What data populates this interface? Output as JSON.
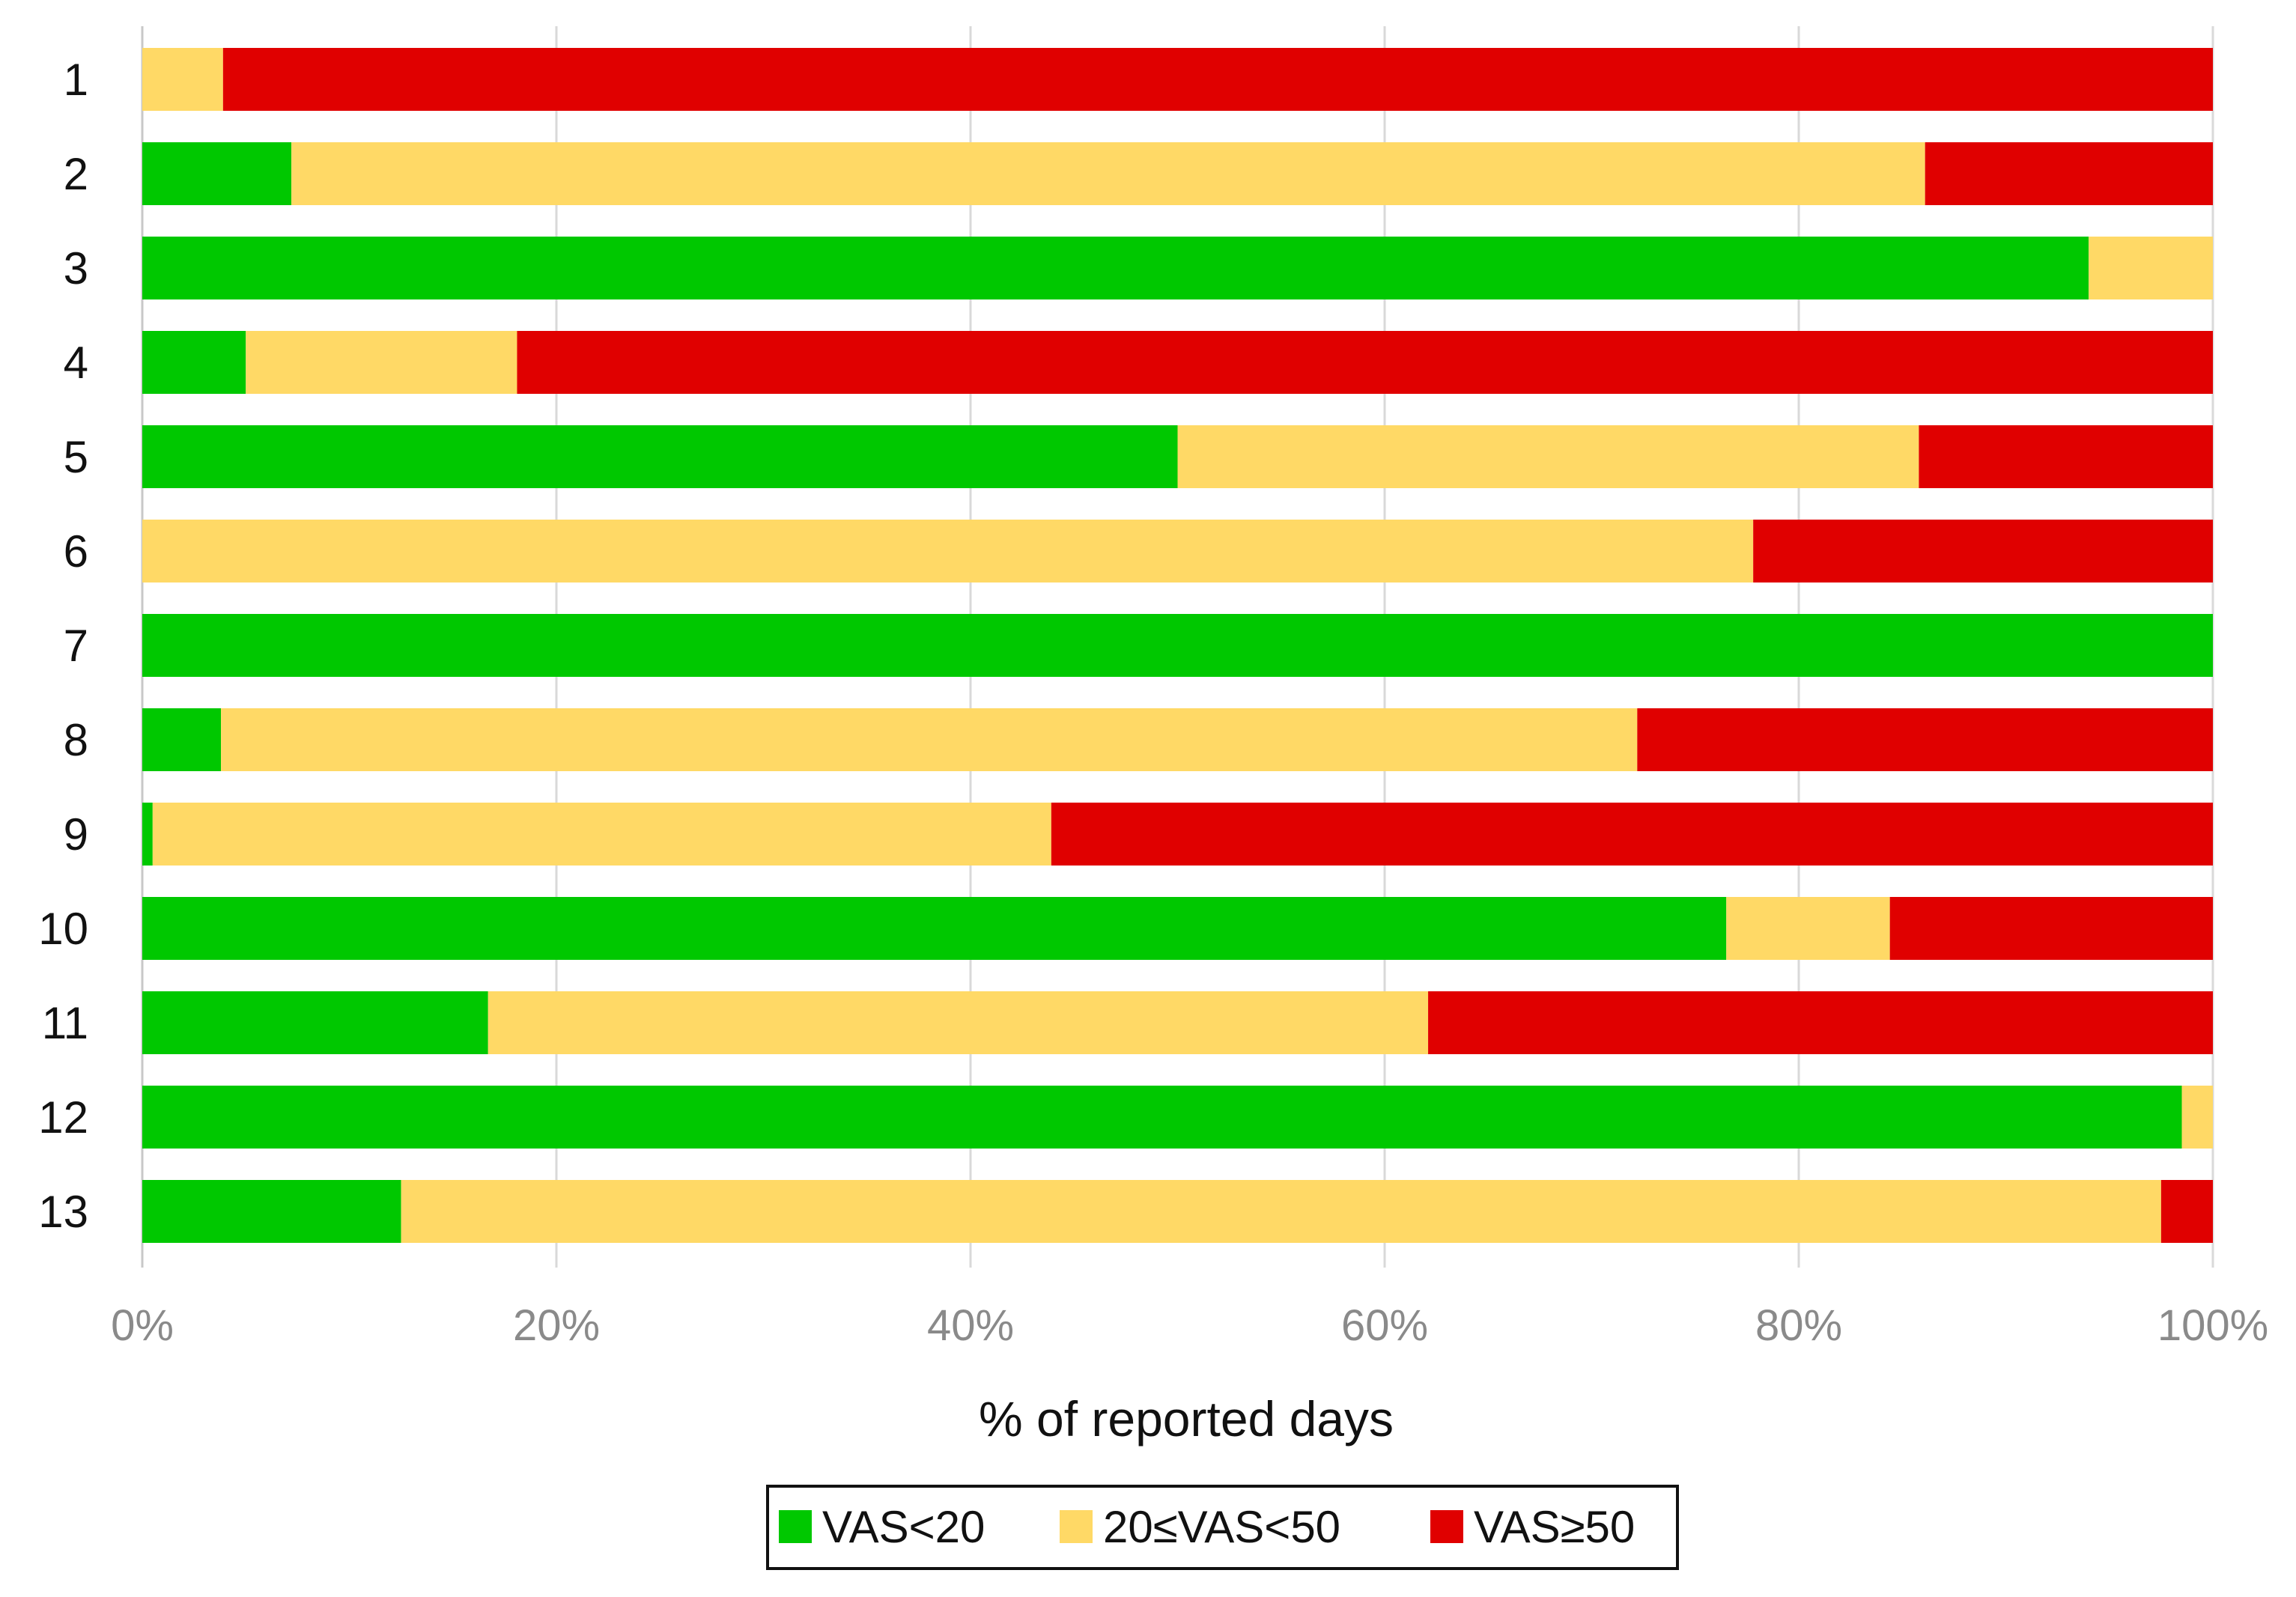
{
  "chart_data": {
    "type": "bar",
    "orientation": "horizontal",
    "stacked": true,
    "categories": [
      "1",
      "2",
      "3",
      "4",
      "5",
      "6",
      "7",
      "8",
      "9",
      "10",
      "11",
      "12",
      "13"
    ],
    "series": [
      {
        "name": "VAS<20",
        "color": "#00C800",
        "values": [
          0,
          7.2,
          94,
          5,
          50,
          0,
          100,
          3.8,
          0.5,
          76.5,
          16.7,
          98.5,
          12.5
        ]
      },
      {
        "name": "20≤VAS<50",
        "color": "#FFD966",
        "values": [
          3.9,
          78.9,
          6,
          13.1,
          35.8,
          77.8,
          0,
          68.4,
          43.4,
          7.9,
          45.4,
          1.5,
          85
        ]
      },
      {
        "name": "VAS≥50",
        "color": "#E00000",
        "values": [
          96.1,
          13.9,
          0,
          81.9,
          14.2,
          22.2,
          0,
          27.8,
          56.1,
          15.6,
          37.9,
          0,
          2.5
        ]
      }
    ],
    "xlim": [
      0,
      100
    ],
    "x_ticks": [
      "0%",
      "20%",
      "40%",
      "60%",
      "80%",
      "100%"
    ],
    "xlabel": "% of reported days",
    "ylabel": "",
    "grid": "vertical gridlines",
    "legend_position": "bottom-center"
  }
}
